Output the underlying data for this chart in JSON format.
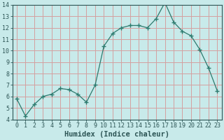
{
  "x": [
    0,
    1,
    2,
    3,
    4,
    5,
    6,
    7,
    8,
    9,
    10,
    11,
    12,
    13,
    14,
    15,
    16,
    17,
    18,
    19,
    20,
    21,
    22,
    23
  ],
  "y": [
    5.8,
    4.3,
    5.3,
    6.0,
    6.2,
    6.7,
    6.6,
    6.2,
    5.5,
    7.0,
    10.4,
    11.5,
    12.0,
    12.2,
    12.2,
    12.0,
    12.8,
    14.2,
    12.5,
    11.7,
    11.3,
    10.1,
    8.5,
    6.5
  ],
  "line_color": "#2d7a6e",
  "marker": "+",
  "marker_size": 4,
  "marker_lw": 1.0,
  "bg_color": "#c8eaea",
  "grid_color": "#d4a0a0",
  "xlabel": "Humidex (Indice chaleur)",
  "ylim": [
    4,
    14
  ],
  "xlim": [
    -0.5,
    23.5
  ],
  "yticks": [
    4,
    5,
    6,
    7,
    8,
    9,
    10,
    11,
    12,
    13,
    14
  ],
  "xticks": [
    0,
    1,
    2,
    3,
    4,
    5,
    6,
    7,
    8,
    9,
    10,
    11,
    12,
    13,
    14,
    15,
    16,
    17,
    18,
    19,
    20,
    21,
    22,
    23
  ],
  "xtick_labels": [
    "0",
    "1",
    "2",
    "3",
    "4",
    "5",
    "6",
    "7",
    "8",
    "9",
    "10",
    "11",
    "12",
    "13",
    "14",
    "15",
    "16",
    "17",
    "18",
    "19",
    "20",
    "21",
    "22",
    "23"
  ],
  "font_color": "#2d5555",
  "tick_fontsize": 6,
  "xlabel_fontsize": 7.5
}
